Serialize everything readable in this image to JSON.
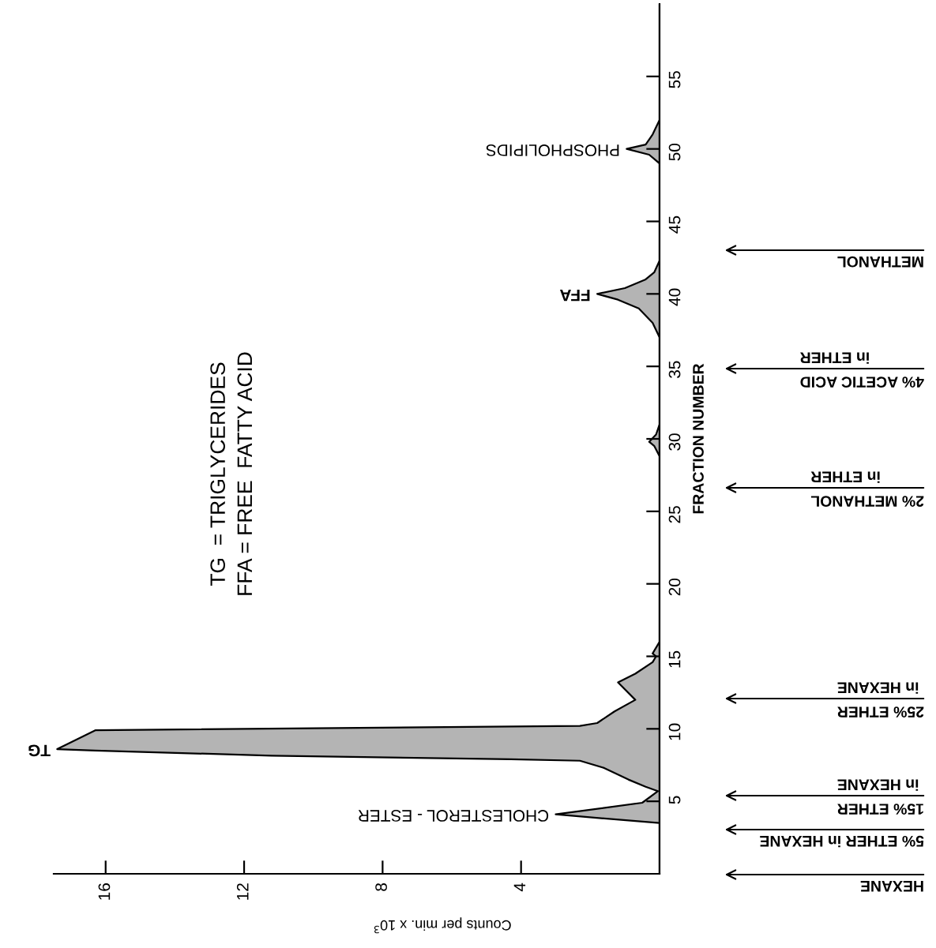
{
  "chart_data": {
    "type": "area",
    "orientation": "horizontal",
    "ylabel": "FRACTION NUMBER",
    "xlabel": "Counts per min. x 10$^{3}$",
    "x": [
      0,
      3.5,
      4.1,
      4.9,
      5.7,
      6.0,
      6.5,
      7.3,
      7.8,
      7.9,
      8.15,
      8.5,
      8.6,
      9.9,
      10.2,
      10.4,
      11.2,
      12.0,
      13.2,
      13.8,
      14.6,
      15.0,
      15.2,
      16.0,
      28.8,
      29.5,
      29.8,
      30.3,
      31.0,
      37.0,
      38.0,
      39.0,
      39.6,
      40.0,
      40.4,
      41.0,
      41.5,
      42.3,
      49.0,
      49.6,
      50.0,
      50.3,
      51.0,
      52.0,
      60
    ],
    "series": [
      {
        "color": "#b4b4b4",
        "values": [
          0,
          0,
          3.0,
          0.5,
          0.05,
          0.4,
          0.9,
          1.6,
          2.3,
          4.3,
          11.2,
          16.3,
          17.4,
          16.3,
          2.3,
          1.8,
          1.3,
          0.7,
          1.2,
          0.7,
          0.2,
          0.1,
          0.2,
          0,
          0,
          0.15,
          0.3,
          0.1,
          0,
          0,
          0.2,
          0.6,
          1.2,
          1.8,
          1.0,
          0.4,
          0.15,
          0,
          0,
          0.3,
          0.95,
          0.4,
          0.2,
          0,
          0
        ]
      }
    ],
    "ylim": [
      0,
      60
    ],
    "yticks": [
      5,
      10,
      15,
      20,
      25,
      30,
      35,
      40,
      45,
      50,
      55
    ],
    "xlim": [
      17.5,
      0
    ],
    "xticks": [
      4,
      8,
      12,
      16
    ],
    "grid": false,
    "legend": false,
    "annotations": [
      {
        "text": "TG",
        "x": 17.4,
        "y": 8.6
      },
      {
        "text": "CHOLESTEROL - ESTER",
        "x": 3.0,
        "y": 4.1
      },
      {
        "text": "FFA",
        "x": 1.8,
        "y": 40.0
      },
      {
        "text": "PHOSPHOLIPIDS",
        "x": 0.95,
        "y": 50.0
      },
      "HEXANE",
      "5% ETHER in HEXANE",
      "15% ETHER\nin HEXANE",
      "25% ETHER\nin HEXANE",
      "2% METHANOL\nin ETHER",
      "4% ACETIC ACID\nin ETHER",
      "METHANOL",
      "TG  = TRIGLYCERIDES\nFFA = FREE  FATTY ACID"
    ]
  }
}
